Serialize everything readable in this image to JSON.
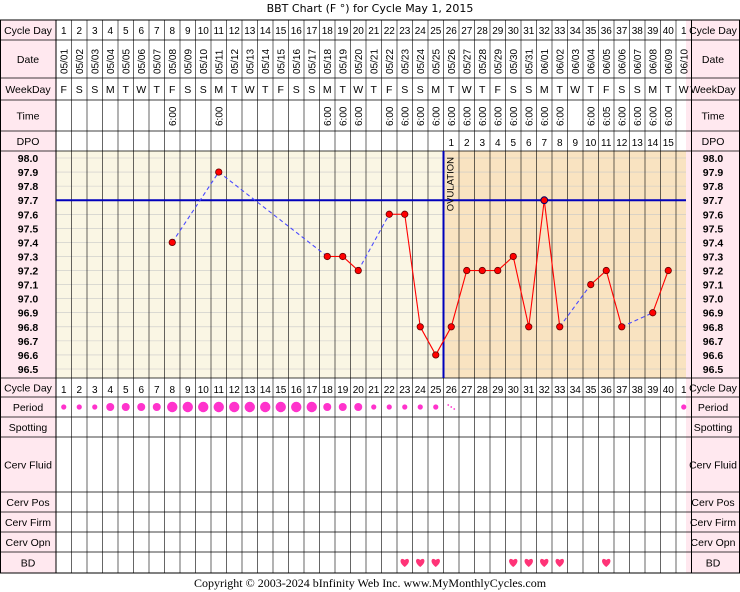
{
  "title": "BBT Chart (F °) for Cycle May 1, 2015",
  "row_labels": {
    "cycle_day": "Cycle Day",
    "date": "Date",
    "weekday": "WeekDay",
    "time": "Time",
    "dpo": "DPO",
    "period": "Period",
    "spotting": "Spotting",
    "cerv_fluid": "Cerv Fluid",
    "cerv_pos": "Cerv Pos",
    "cerv_firm": "Cerv Firm",
    "cerv_opn": "Cerv Opn",
    "bd": "BD"
  },
  "colors": {
    "grid_bg_pre": "#faf6e4",
    "grid_bg_post": "#f9e3c1",
    "row_label_bg": "#ffe8ef",
    "line": "#ff0000",
    "dashed": "#4a4aff",
    "coverline": "#0000bb",
    "ovulation": "#0000bb",
    "period_dot": "#ff33cc",
    "heart": "#ff3377"
  },
  "ovulation_label": "OVULATION",
  "copyright": "Copyright © 2003-2024 bInfinity Web Inc.    www.MyMonthlyCycles.com",
  "chart_data": {
    "type": "line",
    "title": "BBT Chart (F °) for Cycle May 1, 2015",
    "cycle_days": [
      "1",
      "2",
      "3",
      "4",
      "5",
      "6",
      "7",
      "8",
      "9",
      "10",
      "11",
      "12",
      "13",
      "14",
      "15",
      "16",
      "17",
      "18",
      "19",
      "20",
      "21",
      "22",
      "23",
      "24",
      "25",
      "26",
      "27",
      "28",
      "29",
      "30",
      "31",
      "32",
      "33",
      "34",
      "35",
      "36",
      "37",
      "38",
      "39",
      "40",
      "1"
    ],
    "dates": [
      "05/01",
      "05/02",
      "05/03",
      "05/04",
      "05/05",
      "05/06",
      "05/07",
      "05/08",
      "05/09",
      "05/10",
      "05/11",
      "05/12",
      "05/13",
      "05/14",
      "05/15",
      "05/16",
      "05/17",
      "05/18",
      "05/19",
      "05/20",
      "05/21",
      "05/22",
      "05/23",
      "05/24",
      "05/25",
      "05/26",
      "05/27",
      "05/28",
      "05/29",
      "05/30",
      "05/31",
      "06/01",
      "06/02",
      "06/03",
      "06/04",
      "06/05",
      "06/06",
      "06/07",
      "06/08",
      "06/09",
      "06/10"
    ],
    "weekdays": [
      "F",
      "S",
      "S",
      "M",
      "T",
      "W",
      "T",
      "F",
      "S",
      "S",
      "M",
      "T",
      "W",
      "T",
      "F",
      "S",
      "S",
      "M",
      "T",
      "W",
      "T",
      "F",
      "S",
      "S",
      "M",
      "T",
      "W",
      "T",
      "F",
      "S",
      "S",
      "M",
      "T",
      "W",
      "T",
      "F",
      "S",
      "S",
      "M",
      "T",
      "W"
    ],
    "times": [
      "",
      "",
      "",
      "",
      "",
      "",
      "",
      "6:00",
      "",
      "",
      "6:00",
      "",
      "",
      "",
      "",
      "",
      "",
      "6:00",
      "6:00",
      "6:00",
      "",
      "6:00",
      "6:00",
      "6:00",
      "6:00",
      "6:00",
      "6:00",
      "6:00",
      "6:00",
      "6:00",
      "6:00",
      "6:00",
      "6:00",
      "",
      "6:00",
      "6:05",
      "6:00",
      "6:00",
      "6:00",
      "6:00",
      ""
    ],
    "dpo": [
      "",
      "",
      "",
      "",
      "",
      "",
      "",
      "",
      "",
      "",
      "",
      "",
      "",
      "",
      "",
      "",
      "",
      "",
      "",
      "",
      "",
      "",
      "",
      "",
      "",
      "1",
      "2",
      "3",
      "4",
      "5",
      "6",
      "7",
      "8",
      "9",
      "10",
      "11",
      "12",
      "13",
      "14",
      "15",
      ""
    ],
    "temps": [
      null,
      null,
      null,
      null,
      null,
      null,
      null,
      97.4,
      null,
      null,
      97.9,
      null,
      null,
      null,
      null,
      null,
      null,
      97.3,
      97.3,
      97.2,
      null,
      97.6,
      97.6,
      96.8,
      96.6,
      96.8,
      97.2,
      97.2,
      97.2,
      97.3,
      96.8,
      97.7,
      96.8,
      null,
      97.1,
      97.2,
      96.8,
      null,
      96.9,
      97.2,
      null
    ],
    "y_ticks": [
      "98.0",
      "97.9",
      "97.8",
      "97.7",
      "97.6",
      "97.5",
      "97.4",
      "97.3",
      "97.2",
      "97.1",
      "97.0",
      "96.9",
      "96.8",
      "96.7",
      "96.6",
      "96.5"
    ],
    "ylim": [
      96.5,
      98.0
    ],
    "coverline": 97.7,
    "ovulation_day": 25,
    "period": [
      "small",
      "small",
      "small",
      "medium",
      "medium",
      "medium",
      "medium",
      "large",
      "large",
      "large",
      "large",
      "large",
      "large",
      "large",
      "large",
      "large",
      "large",
      "medium",
      "medium",
      "medium",
      "small",
      "small",
      "small",
      "small",
      "small",
      "spot",
      "",
      "",
      "",
      "",
      "",
      "",
      "",
      "",
      "",
      "",
      "",
      "",
      "",
      "",
      "small"
    ],
    "bd_days": [
      23,
      24,
      25,
      30,
      31,
      32,
      33,
      36
    ],
    "grid": true
  }
}
